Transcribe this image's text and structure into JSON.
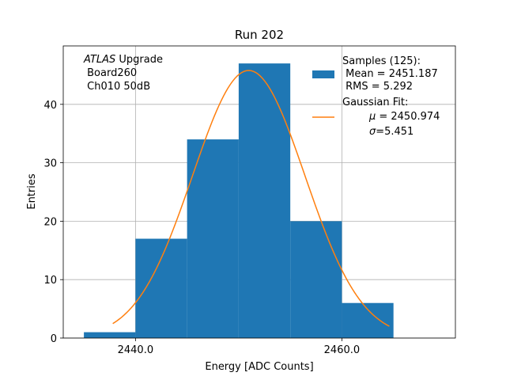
{
  "chart_data": {
    "type": "bar",
    "title": "Run 202",
    "xlabel": "Energy [ADC Counts]",
    "ylabel": "Entries",
    "xlim": [
      2433,
      2471
    ],
    "ylim": [
      0,
      50
    ],
    "grid": true,
    "x_ticks": [
      2440,
      2460
    ],
    "x_tick_labels": [
      "2440.0",
      "2460.0"
    ],
    "y_ticks": [
      0,
      10,
      20,
      30,
      40
    ],
    "y_tick_labels": [
      "0",
      "10",
      "20",
      "30",
      "40"
    ],
    "histogram": {
      "name": "Samples (125):",
      "bin_edges": [
        2435,
        2440,
        2445,
        2450,
        2455,
        2460,
        2465
      ],
      "counts": [
        1,
        17,
        34,
        47,
        20,
        6
      ],
      "color": "#1f77b4"
    },
    "fit": {
      "name": "Gaussian Fit:",
      "type": "gaussian",
      "mu": 2450.974,
      "sigma": 5.451,
      "amplitude": 45.8,
      "x_range": [
        2437.8,
        2464.6
      ],
      "color": "#ff7f0e"
    },
    "annotation": {
      "experiment": "ATLAS",
      "suffix": " Upgrade",
      "board": " Board260",
      "channel": " Ch010 50dB"
    },
    "legend": {
      "location": "top-right",
      "samples_title": "Samples (125):",
      "samples_mean": " Mean = 2451.187",
      "samples_rms": " RMS = 5.292",
      "fit_title": "Gaussian Fit:",
      "fit_mu_symbol": "μ",
      "fit_mu_value": " = 2450.974",
      "fit_sigma_symbol": "σ",
      "fit_sigma_value": "=5.451"
    }
  }
}
